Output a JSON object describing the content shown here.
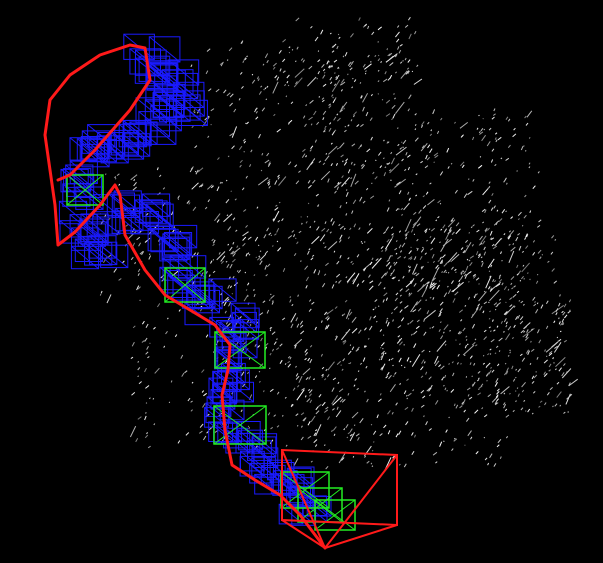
{
  "viewer": {
    "background_color": "#000000",
    "point_cloud_color": "#cfcfcf",
    "camera_frustum_color": "#1a1aff",
    "keyframe_color": "#22ee22",
    "trajectory_color": "#ff1a1a",
    "current_camera_color": "#ff1a1a"
  }
}
